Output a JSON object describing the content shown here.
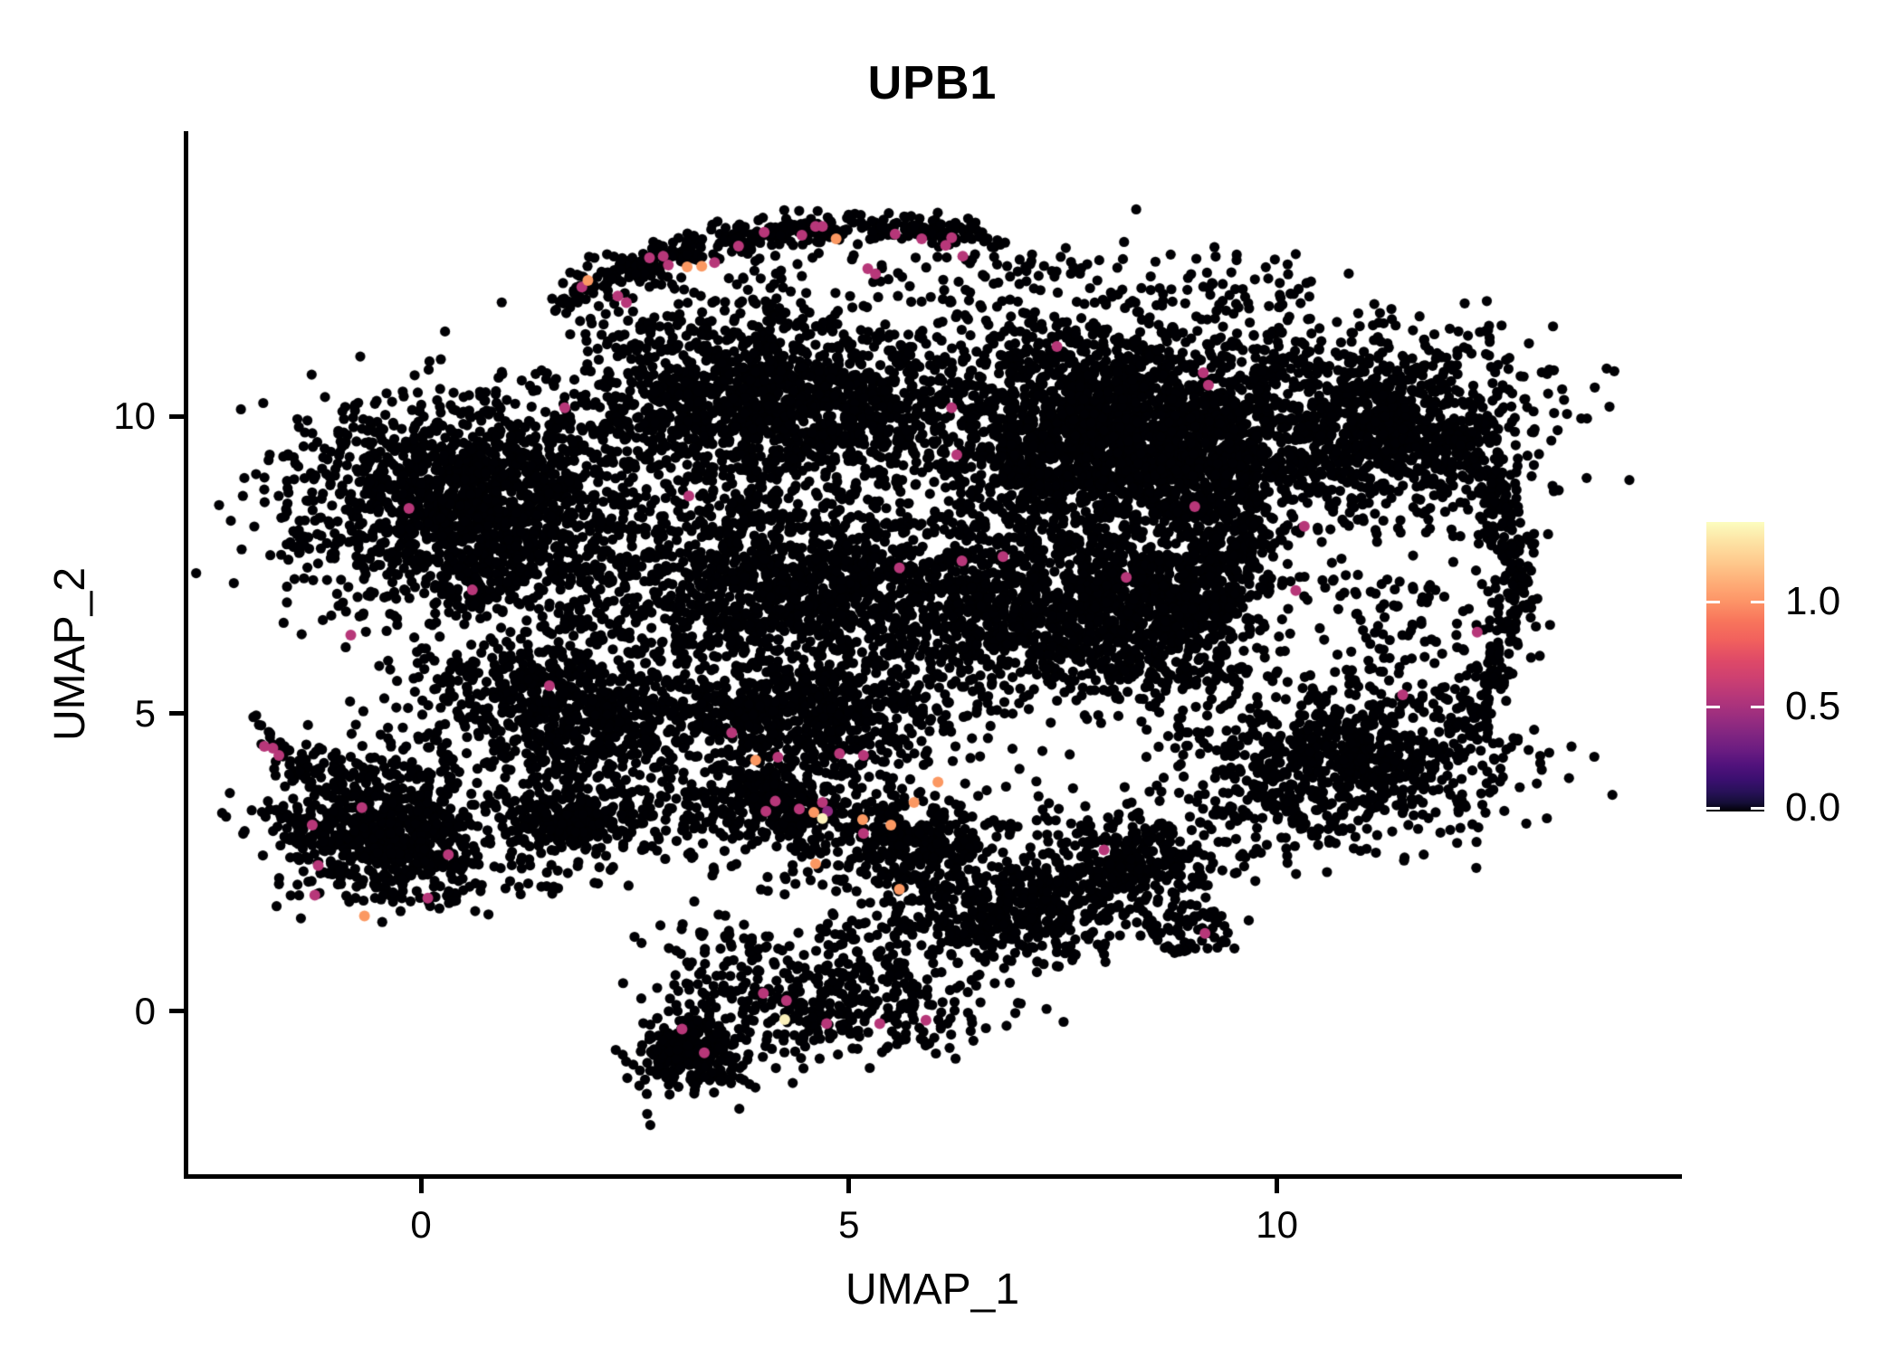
{
  "title": "UPB1",
  "axes": {
    "x_label": "UMAP_1",
    "y_label": "UMAP_2",
    "x_ticks": [
      0,
      5,
      10
    ],
    "y_ticks": [
      0,
      5,
      10
    ],
    "xlim": [
      -2.75,
      14.7
    ],
    "ylim": [
      -2.77,
      14.79
    ]
  },
  "legend": {
    "tick_labels": [
      "1.0",
      "0.5",
      "0.0"
    ],
    "tick_values": [
      1.0,
      0.5,
      0.0
    ],
    "vmin": 0.0,
    "vmax": 1.38,
    "colormap": "magma"
  },
  "colors": {
    "background": "#ffffff",
    "axis": "#000000",
    "point_zero": "#000004",
    "expression_mid": "#b73779",
    "expression_mid_dark": "#8e2a80",
    "expression_high": "#fb9862",
    "expression_top": "#fbf1bb"
  },
  "chart_data": {
    "type": "scatter",
    "title": "UPB1",
    "xlabel": "UMAP_1",
    "ylabel": "UMAP_2",
    "xlim": [
      -2.75,
      14.7
    ],
    "ylim": [
      -2.77,
      14.79
    ],
    "grid": false,
    "legend_position": "right",
    "point_radius_px": 5.6,
    "seed": 42,
    "clusters": [
      {
        "shape": "arc",
        "p0": [
          1.64,
          11.98
        ],
        "p1": [
          4.18,
          13.72
        ],
        "p2": [
          6.67,
          12.96
        ],
        "sigma": 0.13,
        "n": 380
      },
      {
        "shape": "box",
        "x0": 1.75,
        "x1": 6.72,
        "y0": 11.06,
        "y1": 12.74,
        "n": 170
      },
      {
        "shape": "box",
        "x0": 6.72,
        "x1": 10.43,
        "y0": 10.91,
        "y1": 12.74,
        "n": 140
      },
      {
        "shape": "gauss",
        "cx": 0.58,
        "cy": 8.48,
        "sx": 1.0,
        "sy": 0.9,
        "rot": -30,
        "n": 1700
      },
      {
        "shape": "gauss",
        "cx": 4.08,
        "cy": 10.15,
        "sx": 1.1,
        "sy": 0.75,
        "rot": 0,
        "n": 1500
      },
      {
        "shape": "gauss",
        "cx": 4.4,
        "cy": 7.19,
        "sx": 1.3,
        "sy": 0.8,
        "rot": 0,
        "n": 1400
      },
      {
        "shape": "gauss",
        "cx": 8.1,
        "cy": 9.7,
        "sx": 1.1,
        "sy": 0.95,
        "rot": 0,
        "n": 2300
      },
      {
        "shape": "gauss",
        "cx": 7.57,
        "cy": 6.66,
        "sx": 1.05,
        "sy": 0.7,
        "rot": 0,
        "n": 1100
      },
      {
        "shape": "gauss",
        "cx": 1.85,
        "cy": 5.14,
        "sx": 0.95,
        "sy": 0.6,
        "rot": -15,
        "n": 800
      },
      {
        "shape": "gauss",
        "cx": 4.61,
        "cy": 4.98,
        "sx": 0.85,
        "sy": 0.55,
        "rot": 0,
        "n": 650
      },
      {
        "shape": "gauss",
        "cx": 8.85,
        "cy": 6.5,
        "sx": 0.45,
        "sy": 0.85,
        "rot": 0,
        "n": 300
      },
      {
        "shape": "gauss",
        "cx": 11.28,
        "cy": 9.85,
        "sx": 0.85,
        "sy": 0.8,
        "rot": 0,
        "n": 1000
      },
      {
        "shape": "arc",
        "p0": [
          12.24,
          9.7
        ],
        "p1": [
          13.29,
          7.11
        ],
        "p2": [
          12.13,
          4.68
        ],
        "sigma": 0.15,
        "n": 300
      },
      {
        "shape": "gauss",
        "cx": 10.75,
        "cy": 4.15,
        "sx": 0.95,
        "sy": 0.65,
        "rot": 10,
        "n": 850
      },
      {
        "shape": "gauss",
        "cx": 11.44,
        "cy": 6.5,
        "sx": 0.55,
        "sy": 0.6,
        "rot": 0,
        "n": 90
      },
      {
        "shape": "gauss",
        "cx": 9.48,
        "cy": 8.33,
        "sx": 0.4,
        "sy": 0.95,
        "rot": 0,
        "n": 380
      },
      {
        "shape": "gauss",
        "cx": 1.85,
        "cy": 3.24,
        "sx": 0.45,
        "sy": 0.3,
        "rot": 0,
        "n": 260
      },
      {
        "shape": "gauss",
        "cx": 4.03,
        "cy": 3.54,
        "sx": 0.55,
        "sy": 0.32,
        "rot": 0,
        "n": 300
      },
      {
        "shape": "gauss",
        "cx": 5.72,
        "cy": 2.86,
        "sx": 0.6,
        "sy": 0.35,
        "rot": -8,
        "n": 340
      },
      {
        "shape": "box",
        "x0": 1.01,
        "x1": 7.79,
        "y0": 1.95,
        "y1": 4.38,
        "n": 180
      },
      {
        "shape": "gauss",
        "cx": 6.94,
        "cy": 1.79,
        "sx": 0.8,
        "sy": 0.45,
        "rot": 0,
        "n": 500
      },
      {
        "shape": "gauss",
        "cx": 8.37,
        "cy": 2.55,
        "sx": 0.55,
        "sy": 0.4,
        "rot": 0,
        "n": 280
      },
      {
        "shape": "gauss",
        "cx": 8.95,
        "cy": 1.34,
        "sx": 0.25,
        "sy": 0.2,
        "rot": 0,
        "n": 60
      },
      {
        "shape": "gauss",
        "cx": -0.48,
        "cy": 3.01,
        "sx": 0.65,
        "sy": 0.55,
        "rot": -10,
        "n": 780
      },
      {
        "shape": "arc",
        "p0": [
          -1.91,
          4.94
        ],
        "p1": [
          -1.75,
          4.38
        ],
        "p2": [
          -1.11,
          3.62
        ],
        "sigma": 0.09,
        "n": 35
      },
      {
        "shape": "box",
        "x0": -1.43,
        "x1": 1.01,
        "y0": 3.92,
        "y1": 4.83,
        "n": 70
      },
      {
        "shape": "gauss",
        "cx": 4.82,
        "cy": 0.12,
        "sx": 0.9,
        "sy": 0.45,
        "rot": -5,
        "n": 380
      },
      {
        "shape": "gauss",
        "cx": 3.18,
        "cy": -0.71,
        "sx": 0.35,
        "sy": 0.35,
        "rot": 0,
        "n": 260
      },
      {
        "shape": "box",
        "x0": 2.91,
        "x1": 6.62,
        "y0": 0.58,
        "y1": 1.49,
        "n": 90
      },
      {
        "shape": "box",
        "x0": -1.64,
        "x1": -1.2,
        "y0": 7.57,
        "y1": 9.85,
        "n": 25
      },
      {
        "shape": "box",
        "x0": 1.01,
        "x1": 1.85,
        "y0": 1.79,
        "y1": 4.53,
        "n": 30
      },
      {
        "shape": "box",
        "x0": 2.5,
        "x1": 8.5,
        "y0": 1.2,
        "y1": 2.1,
        "n": 25
      }
    ],
    "expression_points": {
      "mid": [
        [
          1.88,
          12.17
        ],
        [
          2.3,
          12.02
        ],
        [
          2.4,
          11.91
        ],
        [
          2.67,
          12.66
        ],
        [
          2.83,
          12.69
        ],
        [
          2.89,
          12.54
        ],
        [
          3.43,
          12.58
        ],
        [
          3.71,
          12.86
        ],
        [
          4.01,
          13.09
        ],
        [
          4.45,
          13.04
        ],
        [
          4.61,
          13.19
        ],
        [
          4.69,
          13.19
        ],
        [
          5.22,
          12.48
        ],
        [
          5.31,
          12.39
        ],
        [
          5.54,
          13.06
        ],
        [
          5.85,
          12.98
        ],
        [
          6.13,
          12.87
        ],
        [
          6.33,
          12.69
        ],
        [
          6.2,
          13.0
        ],
        [
          1.68,
          10.14
        ],
        [
          7.43,
          11.17
        ],
        [
          9.14,
          10.73
        ],
        [
          9.2,
          10.52
        ],
        [
          6.2,
          10.14
        ],
        [
          6.26,
          9.35
        ],
        [
          9.04,
          8.48
        ],
        [
          5.59,
          7.45
        ],
        [
          6.32,
          7.57
        ],
        [
          6.8,
          7.64
        ],
        [
          8.24,
          7.29
        ],
        [
          0.6,
          7.08
        ],
        [
          1.5,
          5.47
        ],
        [
          -0.82,
          6.32
        ],
        [
          -0.14,
          8.45
        ],
        [
          3.13,
          8.66
        ],
        [
          10.32,
          8.15
        ],
        [
          10.22,
          7.07
        ],
        [
          12.34,
          6.37
        ],
        [
          11.47,
          5.32
        ],
        [
          3.63,
          4.68
        ],
        [
          4.17,
          4.27
        ],
        [
          4.89,
          4.33
        ],
        [
          5.17,
          4.3
        ],
        [
          4.14,
          3.53
        ],
        [
          4.03,
          3.36
        ],
        [
          4.42,
          3.4
        ],
        [
          4.69,
          3.51
        ],
        [
          5.17,
          2.99
        ],
        [
          -1.83,
          4.45
        ],
        [
          -1.73,
          4.42
        ],
        [
          -1.66,
          4.3
        ],
        [
          -0.69,
          3.42
        ],
        [
          -1.27,
          3.13
        ],
        [
          -1.2,
          2.45
        ],
        [
          -1.24,
          1.95
        ],
        [
          0.32,
          2.63
        ],
        [
          0.08,
          1.9
        ],
        [
          3.05,
          -0.3
        ],
        [
          3.31,
          -0.7
        ],
        [
          4.0,
          0.3
        ],
        [
          4.27,
          0.18
        ],
        [
          4.74,
          -0.21
        ],
        [
          5.36,
          -0.21
        ],
        [
          5.9,
          -0.15
        ],
        [
          9.16,
          1.31
        ],
        [
          7.98,
          2.71
        ]
      ],
      "mid_dark": [
        [
          4.75,
          3.36
        ]
      ],
      "high": [
        [
          1.95,
          12.28
        ],
        [
          3.11,
          12.51
        ],
        [
          3.28,
          12.52
        ],
        [
          4.85,
          12.98
        ],
        [
          3.91,
          4.22
        ],
        [
          4.59,
          3.34
        ],
        [
          5.16,
          3.22
        ],
        [
          5.49,
          3.13
        ],
        [
          5.76,
          3.51
        ],
        [
          4.61,
          2.48
        ],
        [
          5.59,
          2.05
        ],
        [
          6.04,
          3.85
        ],
        [
          -0.66,
          1.6
        ]
      ],
      "top": [
        [
          4.69,
          3.24
        ],
        [
          4.25,
          -0.14
        ]
      ]
    }
  }
}
